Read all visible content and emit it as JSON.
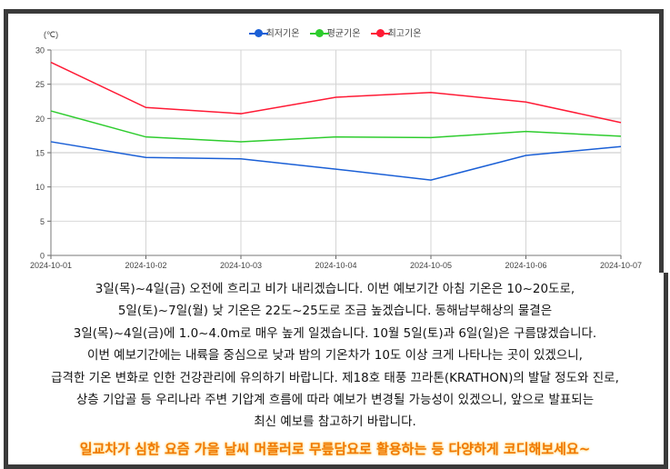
{
  "chart_data": {
    "type": "line",
    "ylabel": "(℃)",
    "ylim": [
      0,
      30
    ],
    "yticks": [
      0,
      5,
      10,
      15,
      20,
      25,
      30
    ],
    "categories": [
      "2024-10-01",
      "2024-10-02",
      "2024-10-03",
      "2024-10-04",
      "2024-10-05",
      "2024-10-06",
      "2024-10-07"
    ],
    "legend_position": "top-center",
    "grid": true,
    "series": [
      {
        "name": "최저기온",
        "color": "#1a5fd6",
        "values": [
          16.6,
          14.3,
          14.1,
          12.6,
          11.0,
          14.6,
          15.9
        ]
      },
      {
        "name": "평균기온",
        "color": "#2ecc2e",
        "values": [
          21.1,
          17.3,
          16.6,
          17.3,
          17.2,
          18.1,
          17.4
        ]
      },
      {
        "name": "최고기온",
        "color": "#ff1a35",
        "values": [
          28.2,
          21.6,
          20.7,
          23.1,
          23.8,
          22.4,
          19.4
        ]
      }
    ]
  },
  "description_lines": [
    "3일(목)~4일(금) 오전에 흐리고 비가 내리겠습니다. 이번 예보기간 아침 기온은 10~20도로,",
    "5일(토)~7일(월) 낮 기온은 22도~25도로 조금 높겠습니다. 동해남부해상의 물결은",
    "3일(목)~4일(금)에 1.0~4.0m로 매우 높게 일겠습니다. 10월 5일(토)과 6일(일)은 구름많겠습니다.",
    "이번 예보기간에는 내륙을 중심으로 낮과 밤의 기온차가 10도 이상 크게 나타나는 곳이 있겠으니,",
    "급격한 기온 변화로 인한 건강관리에 유의하기 바랍니다. 제18호 태풍 끄라톤(KRATHON)의 발달 정도와 진로,",
    "상층 기압골 등 우리나라 주변 기압계 흐름에 따라 예보가 변경될 가능성이 있겠으니, 앞으로 발표되는",
    "최신 예보를 참고하기 바랍니다."
  ],
  "tip": "일교차가 심한 요즘 가을 날씨 머플러로 무릎담요로 활용하는 등 다양하게 코디해보세요~"
}
